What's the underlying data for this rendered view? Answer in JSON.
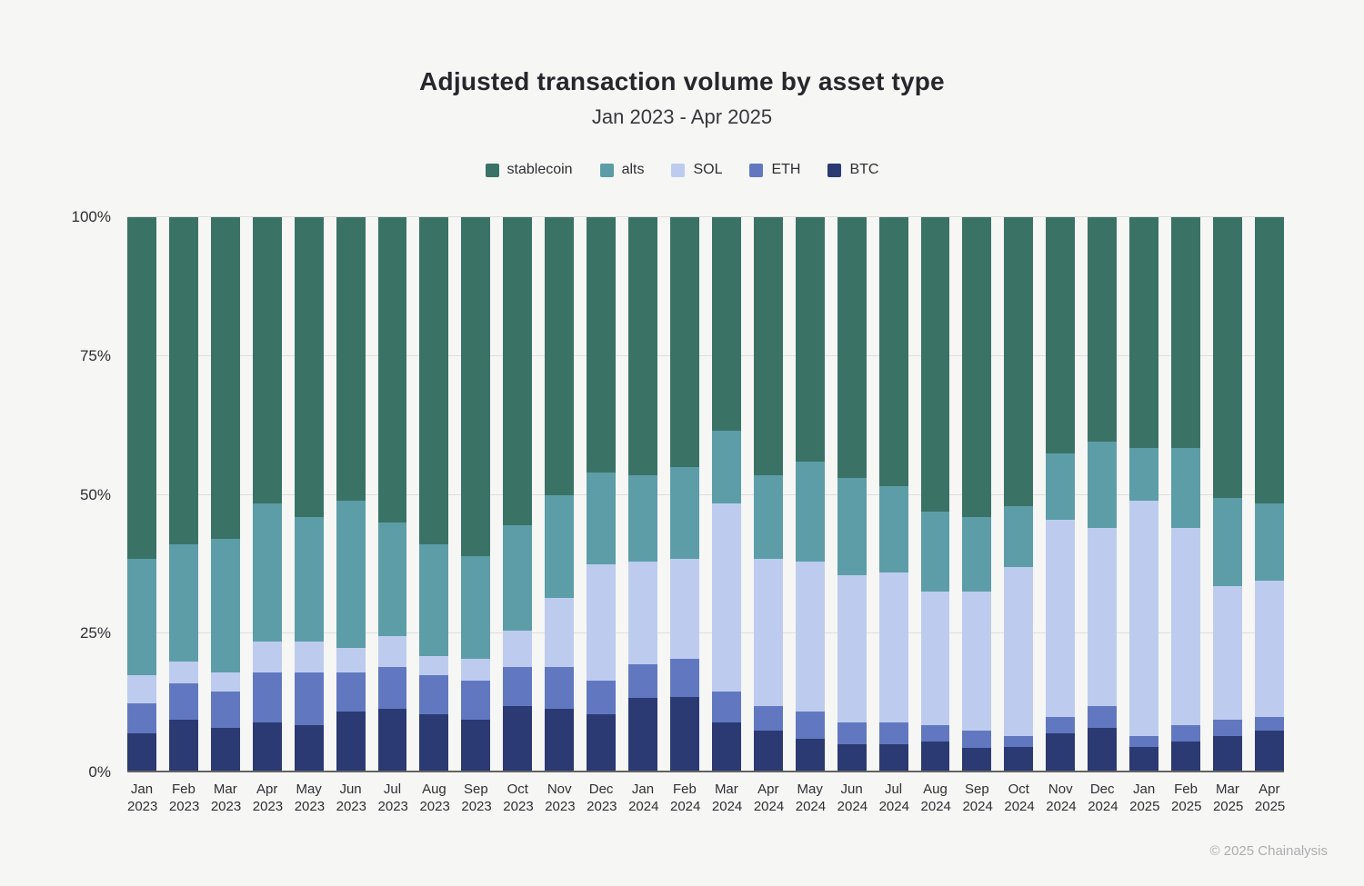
{
  "header": {
    "title": "Adjusted transaction volume by asset type",
    "subtitle": "Jan 2023 - Apr 2025"
  },
  "footer": {
    "copyright": "© 2025 Chainalysis"
  },
  "colors": {
    "background": "#f6f6f5",
    "grid": "#dedede",
    "zero_axis": "#636363",
    "title_text": "#26262b",
    "axis_text": "#2e2e33",
    "footer_text": "#aeaeb0",
    "stablecoin": "#3a7366",
    "alts": "#5c9da8",
    "sol": "#bdccee",
    "eth": "#6178c1",
    "btc": "#2b3a72"
  },
  "chart_data": {
    "type": "bar",
    "stacked": true,
    "percent_stacked": true,
    "title": "Adjusted transaction volume by asset type",
    "subtitle": "Jan 2023 - Apr 2025",
    "xlabel": "",
    "ylabel": "",
    "ylim": [
      0,
      100
    ],
    "grid": true,
    "legend_position": "top",
    "y_ticks": [
      {
        "value": 0,
        "label": "0%"
      },
      {
        "value": 25,
        "label": "25%"
      },
      {
        "value": 50,
        "label": "50%"
      },
      {
        "value": 75,
        "label": "75%"
      },
      {
        "value": 100,
        "label": "100%"
      }
    ],
    "categories": [
      "Jan 2023",
      "Feb 2023",
      "Mar 2023",
      "Apr 2023",
      "May 2023",
      "Jun 2023",
      "Jul 2023",
      "Aug 2023",
      "Sep 2023",
      "Oct 2023",
      "Nov 2023",
      "Dec 2023",
      "Jan 2024",
      "Feb 2024",
      "Mar 2024",
      "Apr 2024",
      "May 2024",
      "Jun 2024",
      "Jul 2024",
      "Aug 2024",
      "Sep 2024",
      "Oct 2024",
      "Nov 2024",
      "Dec 2024",
      "Jan 2025",
      "Feb 2025",
      "Mar 2025",
      "Apr 2025"
    ],
    "series": [
      {
        "name": "stablecoin",
        "color": "#3a7366",
        "values": [
          61.5,
          59,
          58,
          51.5,
          54,
          51,
          55,
          59,
          61,
          55.5,
          50,
          46,
          46.5,
          45,
          38.5,
          46.5,
          44,
          47,
          48.5,
          53,
          54,
          52,
          42.5,
          40.5,
          41.5,
          41.5,
          50.5,
          51.5
        ]
      },
      {
        "name": "alts",
        "color": "#5c9da8",
        "values": [
          21,
          21,
          24,
          25,
          22.5,
          26.5,
          20.5,
          20,
          18.5,
          19,
          18.5,
          16.5,
          15.5,
          16.5,
          13,
          15,
          18,
          17.5,
          15.5,
          14.5,
          13.5,
          11,
          12,
          15.5,
          9.5,
          14.5,
          16,
          14
        ]
      },
      {
        "name": "SOL",
        "color": "#bdccee",
        "values": [
          5,
          4,
          3.5,
          5.5,
          5.5,
          4.5,
          5.5,
          3.5,
          4,
          6.5,
          12.5,
          21,
          18.5,
          18,
          34,
          26.5,
          27,
          26.5,
          27,
          24,
          25,
          30.5,
          35.5,
          32,
          42.5,
          35.5,
          24,
          24.5
        ]
      },
      {
        "name": "ETH",
        "color": "#6178c1",
        "values": [
          5.5,
          6.5,
          6.5,
          9,
          9.5,
          7,
          7.5,
          7,
          7,
          7,
          7.5,
          6,
          6,
          7,
          5.5,
          4.5,
          5,
          4,
          4,
          3,
          3,
          2,
          3,
          4,
          2,
          3,
          3,
          2.5
        ]
      },
      {
        "name": "BTC",
        "color": "#2b3a72",
        "values": [
          7,
          9.5,
          8,
          9,
          8.5,
          11,
          11.5,
          10.5,
          9.5,
          12,
          11.5,
          10.5,
          13.5,
          13.5,
          9,
          7.5,
          6,
          5,
          5,
          5.5,
          4.5,
          4.5,
          7,
          8,
          4.5,
          5.5,
          6.5,
          7.5
        ]
      }
    ]
  }
}
